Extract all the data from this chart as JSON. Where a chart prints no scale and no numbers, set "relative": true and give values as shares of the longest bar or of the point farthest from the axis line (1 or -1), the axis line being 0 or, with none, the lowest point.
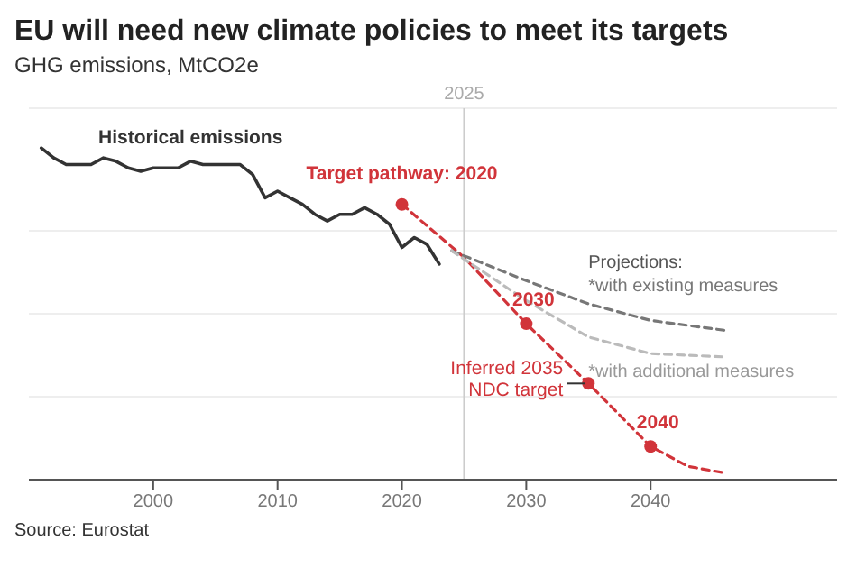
{
  "chart_data": {
    "type": "line",
    "title": "EU will need new climate policies to meet its targets",
    "subtitle": "GHG emissions, MtCO2e",
    "relative": true,
    "xlim": [
      1990,
      2055
    ],
    "xticks": [
      2000,
      2010,
      2020,
      2030,
      2040
    ],
    "grid": "y",
    "legend": false,
    "series": [
      {
        "color": "#333333",
        "line_style": "solid",
        "marker": "none",
        "x": [
          1991,
          1992,
          1993,
          1994,
          1995,
          1996,
          1997,
          1998,
          1999,
          2000,
          2001,
          2002,
          2003,
          2004,
          2005,
          2006,
          2007,
          2008,
          2009,
          2010,
          2011,
          2012,
          2013,
          2014,
          2015,
          2016,
          2017,
          2018,
          2019,
          2020,
          2021,
          2022,
          2023
        ],
        "values": [
          1,
          0.97,
          0.95,
          0.95,
          0.95,
          0.97,
          0.96,
          0.94,
          0.93,
          0.94,
          0.94,
          0.94,
          0.96,
          0.95,
          0.95,
          0.95,
          0.95,
          0.92,
          0.85,
          0.87,
          0.85,
          0.83,
          0.8,
          0.78,
          0.8,
          0.8,
          0.82,
          0.8,
          0.77,
          0.7,
          0.73,
          0.71,
          0.65
        ]
      },
      {
        "color": "#d1343a",
        "line_style": "dashed",
        "marker": "none",
        "x": [
          2020,
          2025,
          2030,
          2035,
          2040,
          2043,
          2046
        ],
        "values": [
          0.83,
          0.67,
          0.47,
          0.29,
          0.1,
          0.04,
          0.02
        ]
      },
      {
        "name": "*with existing measures",
        "color": "#777777",
        "line_style": "dashed",
        "marker": "none",
        "x": [
          2024,
          2030,
          2035,
          2040,
          2046
        ],
        "values": [
          0.69,
          0.6,
          0.53,
          0.48,
          0.45
        ]
      },
      {
        "name": "*with additional measures",
        "color": "#bbbbbb",
        "line_style": "dashed",
        "marker": "none",
        "x": [
          2024,
          2030,
          2035,
          2040,
          2046
        ],
        "values": [
          0.69,
          0.54,
          0.43,
          0.38,
          0.37
        ]
      },
      {
        "type": "scatter",
        "color": "#d1343a",
        "marker": "circle",
        "x": [
          2020,
          2030,
          2035,
          2040
        ],
        "values": [
          0.83,
          0.47,
          0.29,
          0.1
        ]
      }
    ],
    "ref_lines": [
      {
        "axis": "x",
        "value": 2025,
        "label": "2025",
        "color": "#cccccc"
      }
    ],
    "annotations": [
      {
        "text": "Historical emissions",
        "x": 2003,
        "y": 0.96
      },
      {
        "text": "Target pathway: 2020",
        "x": 2020,
        "y": 0.83
      },
      {
        "text": "2030",
        "x": 2030,
        "y": 0.47
      },
      {
        "text": "Inferred 2035 NDC target",
        "x": 2035,
        "y": 0.29
      },
      {
        "text": "2040",
        "x": 2040,
        "y": 0.1
      },
      "Projections:",
      "Source: Eurostat"
    ]
  }
}
